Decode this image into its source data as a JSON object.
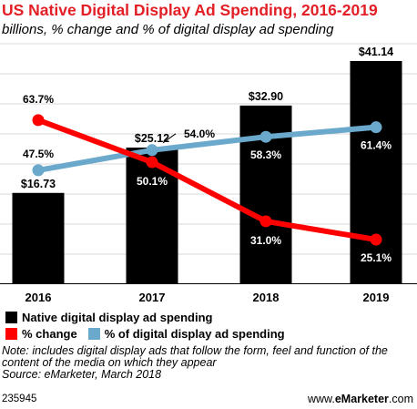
{
  "title": "US Native Digital Display Ad Spending, 2016-2019",
  "subtitle": "billions, % change and % of digital display ad spending",
  "colors": {
    "title": "#e31f26",
    "bars": "#000000",
    "pct_change": "#ff0000",
    "pct_display": "#6aa8cc"
  },
  "chart_data": {
    "type": "bar",
    "categories": [
      "2016",
      "2017",
      "2018",
      "2019"
    ],
    "series": [
      {
        "name": "Native digital display ad spending",
        "type": "bar",
        "values": [
          16.73,
          25.12,
          32.9,
          41.14
        ],
        "labels": [
          "$16.73",
          "$25.12",
          "$32.90",
          "$41.14"
        ]
      },
      {
        "name": "% change",
        "type": "line",
        "values": [
          63.7,
          50.1,
          31.0,
          25.1
        ],
        "labels": [
          "63.7%",
          "50.1%",
          "31.0%",
          "25.1%"
        ]
      },
      {
        "name": "% of digital display ad spending",
        "type": "line",
        "values": [
          47.5,
          54.0,
          58.3,
          61.4
        ],
        "labels": [
          "47.5%",
          "54.0%",
          "58.3%",
          "61.4%"
        ]
      }
    ]
  },
  "legend": {
    "bars": "Native digital display ad spending",
    "pct_change": "% change",
    "pct_display": "% of digital display ad spending"
  },
  "note": "Note: includes digital display ads that follow the form, feel and function of the content of the media on which they appear",
  "source": "Source: eMarketer, March 2018",
  "footer": {
    "chart_id": "235945",
    "brand_prefix": "www.",
    "brand_name": "eMarketer",
    "brand_suffix": ".com"
  }
}
